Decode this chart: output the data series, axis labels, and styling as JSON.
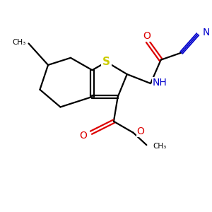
{
  "bg_color": "#ffffff",
  "atom_colors": {
    "C": "#000000",
    "N": "#0000cc",
    "O": "#dd0000",
    "S": "#cccc00",
    "H": "#000000"
  },
  "bond_color": "#000000",
  "bond_width": 1.6,
  "figsize": [
    3.0,
    3.0
  ],
  "dpi": 100,
  "xlim": [
    0,
    10
  ],
  "ylim": [
    0,
    10
  ]
}
